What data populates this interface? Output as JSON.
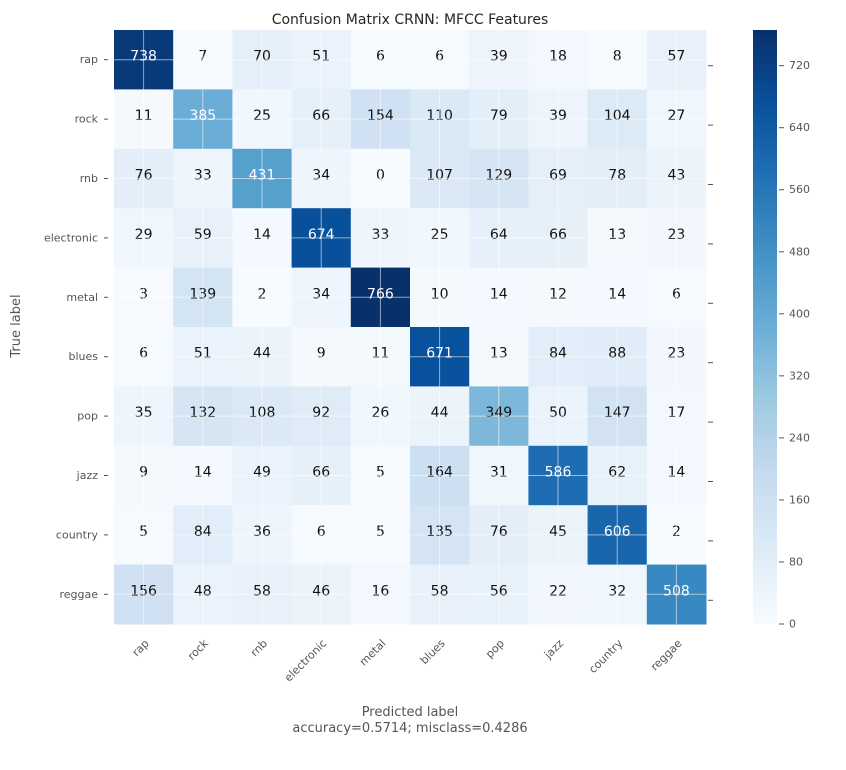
{
  "chart_data": {
    "type": "heatmap",
    "title": "Confusion Matrix CRNN: MFCC Features",
    "xlabel": "Predicted label",
    "xlabel_sub": "accuracy=0.5714; misclass=0.4286",
    "ylabel": "True label",
    "labels": [
      "rap",
      "rock",
      "rnb",
      "electronic",
      "metal",
      "blues",
      "pop",
      "jazz",
      "country",
      "reggae"
    ],
    "matrix": [
      [
        738,
        7,
        70,
        51,
        6,
        6,
        39,
        18,
        8,
        57
      ],
      [
        11,
        385,
        25,
        66,
        154,
        110,
        79,
        39,
        104,
        27
      ],
      [
        76,
        33,
        431,
        34,
        0,
        107,
        129,
        69,
        78,
        43
      ],
      [
        29,
        59,
        14,
        674,
        33,
        25,
        64,
        66,
        13,
        23
      ],
      [
        3,
        139,
        2,
        34,
        766,
        10,
        14,
        12,
        14,
        6
      ],
      [
        6,
        51,
        44,
        9,
        11,
        671,
        13,
        84,
        88,
        23
      ],
      [
        35,
        132,
        108,
        92,
        26,
        44,
        349,
        50,
        147,
        17
      ],
      [
        9,
        14,
        49,
        66,
        5,
        164,
        31,
        586,
        62,
        14
      ],
      [
        5,
        84,
        36,
        6,
        5,
        135,
        76,
        45,
        606,
        2
      ],
      [
        156,
        48,
        58,
        46,
        16,
        58,
        56,
        22,
        32,
        508
      ]
    ],
    "colormap": "Blues",
    "vmin": 0,
    "vmax": 766,
    "colorbar_ticks": [
      0,
      80,
      160,
      240,
      320,
      400,
      480,
      560,
      640,
      720
    ],
    "grid": true
  }
}
